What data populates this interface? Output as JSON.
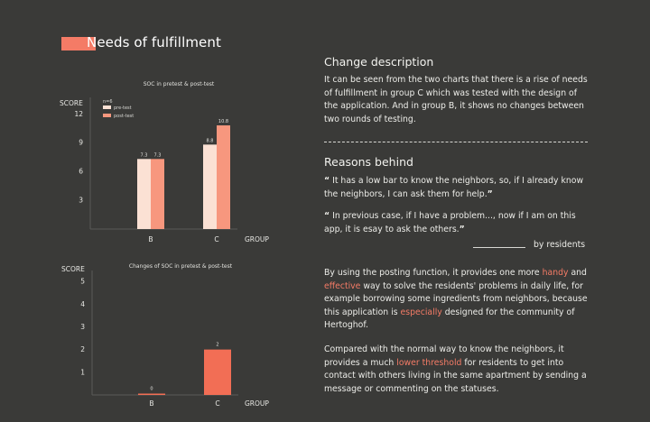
{
  "page": {
    "title": "Needs of fulfillment",
    "accent_color": "#f47b66"
  },
  "chart_data": [
    {
      "type": "bar",
      "title": "SOC in pretest & post-test",
      "ylabel": "SCORE",
      "xlabel": "GROUP",
      "note": "n=6",
      "categories": [
        "B",
        "C"
      ],
      "yticks": [
        3,
        6,
        9,
        12
      ],
      "ylim": [
        0,
        14
      ],
      "legend_placement": "top-left",
      "series": [
        {
          "name": "pre-test",
          "values": [
            7.3,
            8.8
          ],
          "labels": [
            "7.3",
            "8.8"
          ],
          "color": "#fbe1d4"
        },
        {
          "name": "post-test",
          "values": [
            7.3,
            10.8
          ],
          "labels": [
            "7.3",
            "10.8"
          ],
          "color": "#f7977e"
        }
      ]
    },
    {
      "type": "bar",
      "title": "Changes of SOC in pretest & post-test",
      "ylabel": "SCORE",
      "xlabel": "GROUP",
      "categories": [
        "B",
        "C"
      ],
      "yticks": [
        1,
        2,
        3,
        4,
        5
      ],
      "ylim": [
        0,
        5.4
      ],
      "series": [
        {
          "values": [
            0,
            2
          ],
          "labels": [
            "0",
            "2"
          ],
          "color": "#f26e55"
        }
      ]
    }
  ],
  "change": {
    "heading": "Change description",
    "text": "It can be seen from the two charts that there is a rise of needs of fulfillment in group C which was tested with the design of the application. And in group B, it shows no changes between two rounds of testing."
  },
  "reasons": {
    "heading": "Reasons behind",
    "quote1": "It has a low bar to know the neighbors, so, if I already know the neighbors,  I can ask them for help.",
    "quote2": "In previous case, if I have a problem..., now if I am on this app, it is esay to ask the others.",
    "open_quote": "“",
    "close_quote": "”",
    "signature": "by residents"
  },
  "posting": {
    "p1_a": "By using the posting function, it provides one more ",
    "p1_h1": "handy",
    "p1_b": " and ",
    "p1_h2": "effective",
    "p1_c": " way to solve the residents' problems in daily life, for example borrowing some ingredients from neighbors, because this application is ",
    "p1_h3": "especially",
    "p1_d": " designed for the community of Hertoghof.",
    "p2_a": "Compared with the normal way to know the neighbors, it provides a much ",
    "p2_h1": "lower threshold",
    "p2_b": " for residents to get into contact with others living in the same apartment by sending a message or commenting on the statuses."
  }
}
